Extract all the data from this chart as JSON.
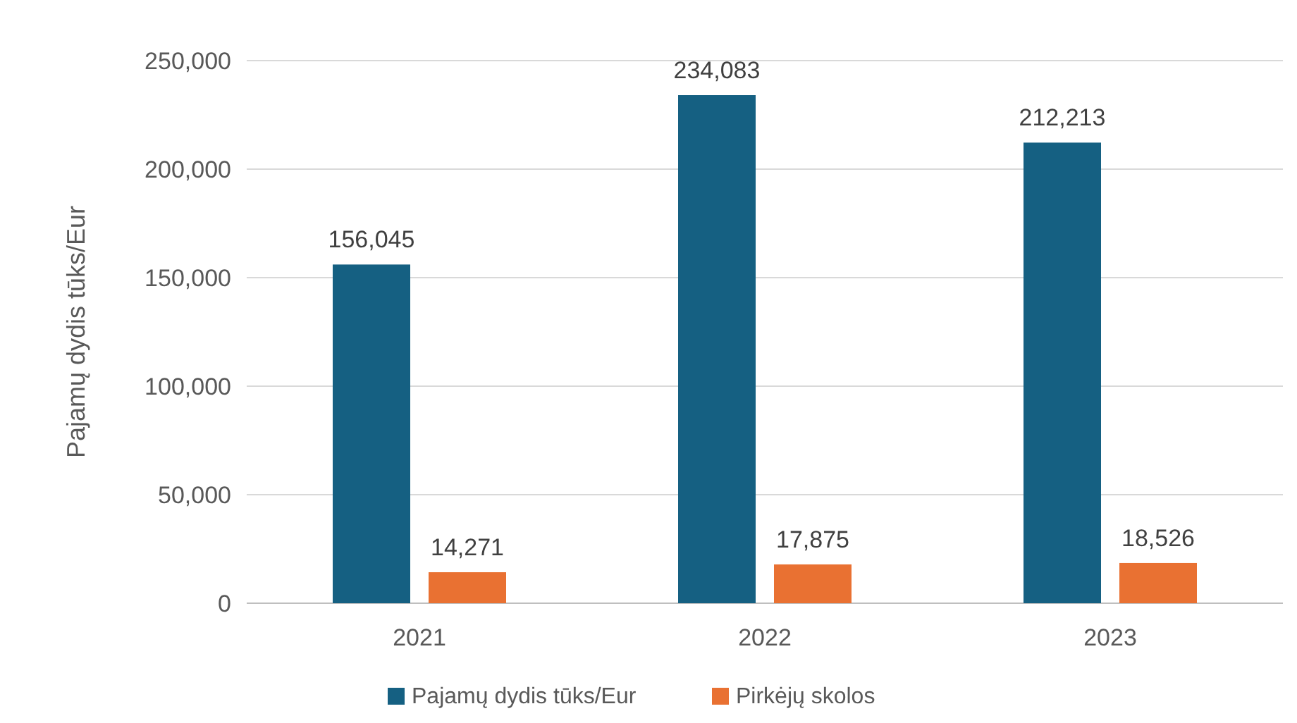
{
  "chart_data": {
    "type": "bar",
    "ylabel": "Pajamų dydis tūks/Eur",
    "categories": [
      "2021",
      "2022",
      "2023"
    ],
    "series": [
      {
        "name": "Pajamų dydis tūks/Eur",
        "color": "#156082",
        "values": [
          156045,
          234083,
          212213
        ],
        "value_labels": [
          "156,045",
          "234,083",
          "212,213"
        ]
      },
      {
        "name": "Pirkėjų skolos",
        "color": "#e97132",
        "values": [
          14271,
          17875,
          18526
        ],
        "value_labels": [
          "14,271",
          "17,875",
          "18,526"
        ]
      }
    ],
    "ylim": [
      0,
      250000
    ],
    "yticks": [
      {
        "value": 0,
        "label": "0"
      },
      {
        "value": 50000,
        "label": "50,000"
      },
      {
        "value": 100000,
        "label": "100,000"
      },
      {
        "value": 150000,
        "label": "150,000"
      },
      {
        "value": 200000,
        "label": "200,000"
      },
      {
        "value": 250000,
        "label": "250,000"
      }
    ],
    "grid": "y",
    "legend": "bottom"
  }
}
